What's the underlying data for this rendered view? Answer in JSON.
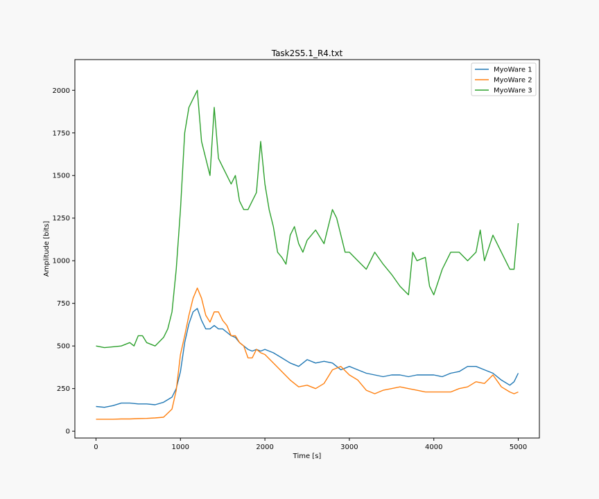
{
  "chart_data": {
    "type": "line",
    "title": "Task2S5.1_R4.txt",
    "xlabel": "Time [s]",
    "ylabel": "Amplitude [bits]",
    "xlim": [
      -250,
      5250
    ],
    "ylim": [
      -40,
      2180
    ],
    "xticks": [
      0,
      1000,
      2000,
      3000,
      4000,
      5000
    ],
    "yticks": [
      0,
      250,
      500,
      750,
      1000,
      1250,
      1500,
      1750,
      2000
    ],
    "grid": false,
    "legend_position": "top-right",
    "series": [
      {
        "name": "MyoWare 1",
        "color": "#1f77b4",
        "x": [
          0,
          100,
          200,
          300,
          400,
          500,
          600,
          700,
          800,
          900,
          950,
          1000,
          1050,
          1100,
          1150,
          1200,
          1250,
          1300,
          1350,
          1400,
          1450,
          1500,
          1550,
          1600,
          1650,
          1700,
          1750,
          1800,
          1850,
          1900,
          1950,
          2000,
          2100,
          2200,
          2300,
          2400,
          2500,
          2600,
          2700,
          2800,
          2900,
          3000,
          3100,
          3200,
          3300,
          3400,
          3500,
          3600,
          3700,
          3800,
          3900,
          4000,
          4100,
          4200,
          4300,
          4400,
          4500,
          4600,
          4700,
          4800,
          4900,
          4950,
          5000
        ],
        "y": [
          145,
          140,
          150,
          165,
          165,
          160,
          160,
          155,
          170,
          200,
          250,
          350,
          520,
          630,
          700,
          720,
          650,
          600,
          600,
          620,
          600,
          600,
          580,
          560,
          550,
          520,
          500,
          480,
          470,
          480,
          470,
          480,
          460,
          430,
          400,
          380,
          420,
          400,
          410,
          400,
          360,
          380,
          360,
          340,
          330,
          320,
          330,
          330,
          320,
          330,
          330,
          330,
          320,
          340,
          350,
          380,
          380,
          360,
          340,
          300,
          270,
          290,
          340
        ]
      },
      {
        "name": "MyoWare 2",
        "color": "#ff7f0e",
        "x": [
          0,
          100,
          200,
          300,
          400,
          500,
          600,
          700,
          800,
          900,
          950,
          1000,
          1050,
          1100,
          1150,
          1200,
          1250,
          1300,
          1350,
          1400,
          1450,
          1500,
          1550,
          1600,
          1650,
          1700,
          1750,
          1800,
          1850,
          1900,
          1950,
          2000,
          2100,
          2200,
          2300,
          2400,
          2500,
          2600,
          2700,
          2800,
          2900,
          3000,
          3100,
          3200,
          3300,
          3400,
          3500,
          3600,
          3700,
          3800,
          3900,
          4000,
          4100,
          4200,
          4300,
          4400,
          4500,
          4600,
          4700,
          4800,
          4900,
          4950,
          5000
        ],
        "y": [
          70,
          70,
          70,
          72,
          72,
          74,
          75,
          78,
          82,
          130,
          240,
          450,
          560,
          680,
          780,
          840,
          780,
          680,
          640,
          700,
          700,
          650,
          620,
          560,
          560,
          520,
          500,
          430,
          430,
          480,
          460,
          450,
          400,
          350,
          300,
          260,
          270,
          250,
          280,
          360,
          380,
          330,
          300,
          240,
          220,
          240,
          250,
          260,
          250,
          240,
          230,
          230,
          230,
          230,
          250,
          260,
          290,
          280,
          330,
          260,
          230,
          220,
          230
        ]
      },
      {
        "name": "MyoWare 3",
        "color": "#2ca02c",
        "x": [
          0,
          100,
          200,
          300,
          400,
          450,
          500,
          550,
          600,
          700,
          800,
          850,
          900,
          950,
          1000,
          1050,
          1100,
          1150,
          1200,
          1250,
          1300,
          1350,
          1400,
          1450,
          1500,
          1550,
          1600,
          1650,
          1700,
          1750,
          1800,
          1850,
          1900,
          1950,
          2000,
          2050,
          2100,
          2150,
          2200,
          2250,
          2300,
          2350,
          2400,
          2450,
          2500,
          2600,
          2700,
          2800,
          2850,
          2900,
          2950,
          3000,
          3100,
          3200,
          3300,
          3400,
          3500,
          3600,
          3700,
          3750,
          3800,
          3900,
          3950,
          4000,
          4100,
          4200,
          4300,
          4400,
          4500,
          4550,
          4600,
          4700,
          4800,
          4900,
          4950,
          5000
        ],
        "y": [
          500,
          490,
          495,
          500,
          520,
          500,
          560,
          560,
          520,
          500,
          550,
          600,
          700,
          950,
          1300,
          1750,
          1900,
          1950,
          2000,
          1700,
          1600,
          1500,
          1900,
          1600,
          1550,
          1500,
          1450,
          1500,
          1350,
          1300,
          1300,
          1350,
          1400,
          1700,
          1450,
          1300,
          1200,
          1050,
          1020,
          980,
          1150,
          1200,
          1100,
          1050,
          1120,
          1180,
          1100,
          1300,
          1250,
          1150,
          1050,
          1050,
          1000,
          950,
          1050,
          980,
          920,
          850,
          800,
          1050,
          1000,
          1020,
          850,
          800,
          950,
          1050,
          1050,
          1000,
          1050,
          1180,
          1000,
          1150,
          1050,
          950,
          950,
          1220
        ]
      }
    ]
  }
}
